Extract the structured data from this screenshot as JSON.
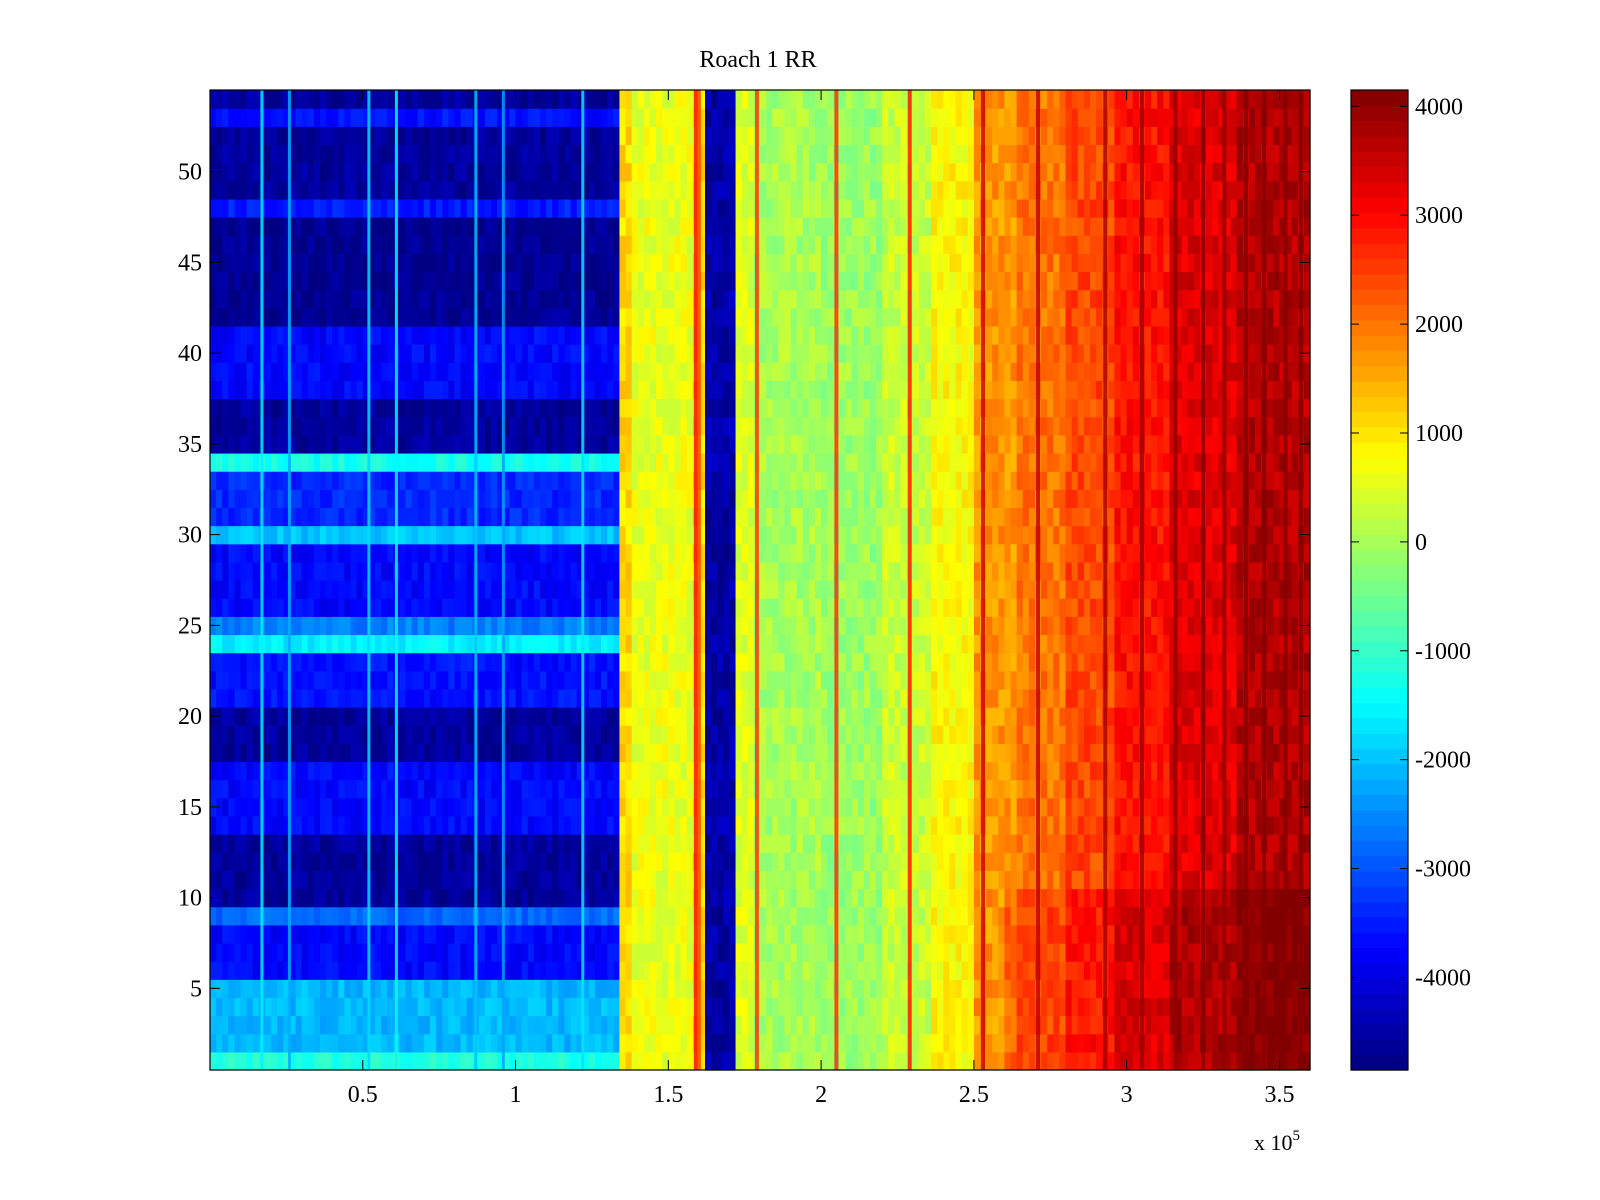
{
  "chart_data": {
    "type": "heatmap",
    "title": "Roach 1 RR",
    "xlabel": "",
    "ylabel": "",
    "x_exponent_label": "x 10",
    "x_exponent_power": "5",
    "xlim": [
      0,
      3.6
    ],
    "ylim": [
      0.5,
      54.5
    ],
    "rows": 54,
    "x_ticks": [
      {
        "value": 0.5,
        "label": "0.5"
      },
      {
        "value": 1,
        "label": "1"
      },
      {
        "value": 1.5,
        "label": "1.5"
      },
      {
        "value": 2,
        "label": "2"
      },
      {
        "value": 2.5,
        "label": "2.5"
      },
      {
        "value": 3,
        "label": "3"
      },
      {
        "value": 3.5,
        "label": "3.5"
      }
    ],
    "y_ticks": [
      {
        "value": 5,
        "label": "5"
      },
      {
        "value": 10,
        "label": "10"
      },
      {
        "value": 15,
        "label": "15"
      },
      {
        "value": 20,
        "label": "20"
      },
      {
        "value": 25,
        "label": "25"
      },
      {
        "value": 30,
        "label": "30"
      },
      {
        "value": 35,
        "label": "35"
      },
      {
        "value": 40,
        "label": "40"
      },
      {
        "value": 45,
        "label": "45"
      },
      {
        "value": 50,
        "label": "50"
      }
    ],
    "colorbar": {
      "colormap": "jet",
      "clim": [
        -4850,
        4150
      ],
      "ticks": [
        {
          "value": 4000,
          "label": "4000"
        },
        {
          "value": 3000,
          "label": "3000"
        },
        {
          "value": 2000,
          "label": "2000"
        },
        {
          "value": 1000,
          "label": "1000"
        },
        {
          "value": 0,
          "label": "0"
        },
        {
          "value": -1000,
          "label": "-1000"
        },
        {
          "value": -2000,
          "label": "-2000"
        },
        {
          "value": -3000,
          "label": "-3000"
        },
        {
          "value": -4000,
          "label": "-4000"
        }
      ]
    },
    "column_profile": [
      {
        "x_start": 0,
        "x_end": 1.34,
        "value": -4400
      },
      {
        "x_start": 1.34,
        "x_end": 1.38,
        "value": 1100
      },
      {
        "x_start": 1.38,
        "x_end": 1.58,
        "value": 600
      },
      {
        "x_start": 1.58,
        "x_end": 1.62,
        "value": 1000
      },
      {
        "x_start": 1.62,
        "x_end": 1.72,
        "value": -4500
      },
      {
        "x_start": 1.72,
        "x_end": 1.78,
        "value": 500
      },
      {
        "x_start": 1.78,
        "x_end": 2.0,
        "value": 0
      },
      {
        "x_start": 2.0,
        "x_end": 2.2,
        "value": -100
      },
      {
        "x_start": 2.2,
        "x_end": 2.35,
        "value": 300
      },
      {
        "x_start": 2.35,
        "x_end": 2.5,
        "value": 800
      },
      {
        "x_start": 2.5,
        "x_end": 2.65,
        "value": 1700
      },
      {
        "x_start": 2.65,
        "x_end": 2.8,
        "value": 2000
      },
      {
        "x_start": 2.8,
        "x_end": 2.95,
        "value": 2400
      },
      {
        "x_start": 2.95,
        "x_end": 3.15,
        "value": 2900
      },
      {
        "x_start": 3.15,
        "x_end": 3.35,
        "value": 3300
      },
      {
        "x_start": 3.35,
        "x_end": 3.6,
        "value": 3700
      }
    ],
    "low_region_rows": [
      {
        "y_start": 0.5,
        "y_end": 1.5,
        "value": -1200
      },
      {
        "y_start": 1.5,
        "y_end": 5.5,
        "value": -2100
      },
      {
        "y_start": 5.5,
        "y_end": 8.5,
        "value": -3700
      },
      {
        "y_start": 8.5,
        "y_end": 9.5,
        "value": -2800
      },
      {
        "y_start": 9.5,
        "y_end": 13.5,
        "value": -4600
      },
      {
        "y_start": 13.5,
        "y_end": 17.5,
        "value": -3700
      },
      {
        "y_start": 17.5,
        "y_end": 20.5,
        "value": -4600
      },
      {
        "y_start": 20.5,
        "y_end": 23.5,
        "value": -3600
      },
      {
        "y_start": 23.5,
        "y_end": 24.5,
        "value": -1600
      },
      {
        "y_start": 24.5,
        "y_end": 25.5,
        "value": -2600
      },
      {
        "y_start": 25.5,
        "y_end": 29.5,
        "value": -3700
      },
      {
        "y_start": 29.5,
        "y_end": 30.5,
        "value": -2000
      },
      {
        "y_start": 30.5,
        "y_end": 33.5,
        "value": -3400
      },
      {
        "y_start": 33.5,
        "y_end": 34.5,
        "value": -1300
      },
      {
        "y_start": 34.5,
        "y_end": 37.5,
        "value": -4600
      },
      {
        "y_start": 37.5,
        "y_end": 41.5,
        "value": -3700
      },
      {
        "y_start": 41.5,
        "y_end": 47.5,
        "value": -4700
      },
      {
        "y_start": 47.5,
        "y_end": 48.5,
        "value": -3500
      },
      {
        "y_start": 48.5,
        "y_end": 52.5,
        "value": -4600
      },
      {
        "y_start": 52.5,
        "y_end": 53.5,
        "value": -3600
      },
      {
        "y_start": 53.5,
        "y_end": 54.5,
        "value": -4600
      }
    ],
    "low_region_streaks": [
      {
        "x": 0.17,
        "value": -1600
      },
      {
        "x": 0.26,
        "value": -2200
      },
      {
        "x": 0.52,
        "value": -1800
      },
      {
        "x": 0.61,
        "value": -1500
      },
      {
        "x": 0.87,
        "value": -2000
      },
      {
        "x": 0.96,
        "value": -2300
      },
      {
        "x": 1.22,
        "value": -1700
      }
    ],
    "high_region_streaks": [
      {
        "x": 1.59,
        "value": 3000
      },
      {
        "x": 1.6,
        "value": 2500
      },
      {
        "x": 1.79,
        "value": 2600
      },
      {
        "x": 2.05,
        "value": 2700
      },
      {
        "x": 2.29,
        "value": 2900
      },
      {
        "x": 2.53,
        "value": 3500
      },
      {
        "x": 2.71,
        "value": 3600
      },
      {
        "x": 2.93,
        "value": 3800
      },
      {
        "x": 3.05,
        "value": 3900
      },
      {
        "x": 3.16,
        "value": 4000
      },
      {
        "x": 3.25,
        "value": 4100
      },
      {
        "x": 3.32,
        "value": 4000
      },
      {
        "x": 3.39,
        "value": 4100
      },
      {
        "x": 3.45,
        "value": 4100
      },
      {
        "x": 3.52,
        "value": 4100
      },
      {
        "x": 3.57,
        "value": 4100
      }
    ]
  }
}
